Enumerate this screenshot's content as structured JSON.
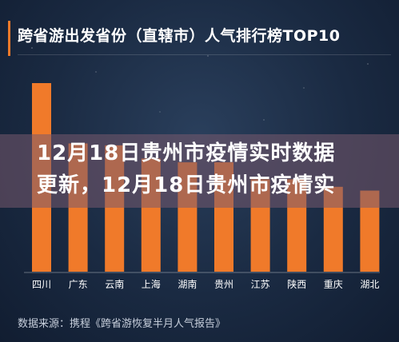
{
  "header": {
    "title": "跨省游出发省份（直辖市）人气排行榜TOP10"
  },
  "overlay": {
    "line1": "12月18日贵州市疫情实时数据",
    "line2": "更新，12月18日贵州市疫情实"
  },
  "footer": {
    "source": "数据来源：携程《跨省游恢复半月人气报告》"
  },
  "colors": {
    "bar": "#f07a2a",
    "background": "#1a2a42",
    "overlay": "#7a5a6e",
    "title_accent": "#f07a2a"
  },
  "chart_data": {
    "type": "bar",
    "title": "跨省游出发省份（直辖市）人气排行榜TOP10",
    "categories": [
      "四川",
      "广东",
      "云南",
      "上海",
      "湖南",
      "贵州",
      "江苏",
      "陕西",
      "重庆",
      "湖北"
    ],
    "values": [
      100,
      68,
      67,
      60,
      58,
      58,
      49,
      49,
      45,
      43
    ],
    "ylim": [
      0,
      100
    ],
    "xlabel": "",
    "ylabel": "",
    "grid": false,
    "legend": "none"
  }
}
